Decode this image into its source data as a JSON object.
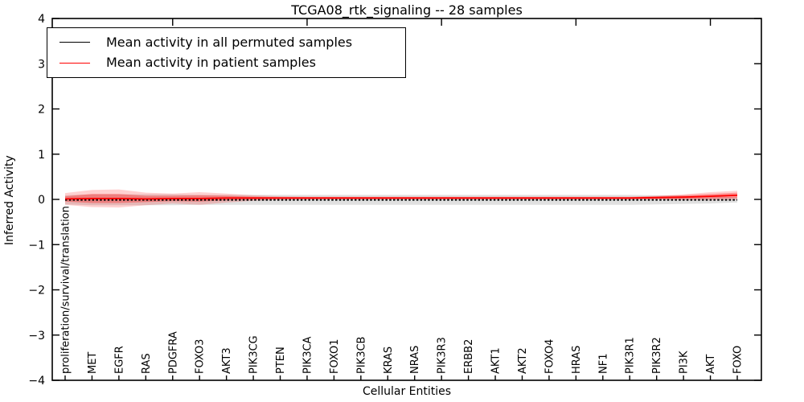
{
  "title": "TCGA08_rtk_signaling -- 28 samples",
  "legend": {
    "entries": [
      {
        "label": "Mean activity in all permuted samples",
        "color": "#000000"
      },
      {
        "label": "Mean activity in patient samples",
        "color": "#ff0000"
      }
    ]
  },
  "colors": {
    "axis": "#000000",
    "permuted_line": "#000000",
    "patient_line": "#ff0000",
    "permuted_band": "rgba(0,0,0,0.12)",
    "patient_band_outer": "rgba(255,0,0,0.18)",
    "patient_band_inner": "rgba(255,0,0,0.30)"
  },
  "chart_data": {
    "type": "line",
    "title": "TCGA08_rtk_signaling -- 28 samples",
    "xlabel": "Cellular Entities",
    "ylabel": "Inferred Activity",
    "ylim": [
      -4,
      4
    ],
    "yticks": [
      4,
      3,
      2,
      1,
      0,
      -1,
      -2,
      -3,
      -4
    ],
    "ytick_labels": [
      "4",
      "3",
      "2",
      "1",
      "0",
      "−1",
      "−2",
      "−3",
      "−4"
    ],
    "grid": false,
    "legend_position": "upper left",
    "top_major_tick_indices": [
      4,
      9,
      14,
      19,
      24
    ],
    "categories": [
      "proliferation/survival/translation",
      "MET",
      "EGFR",
      "RAS",
      "PDGFRA",
      "FOXO3",
      "AKT3",
      "PIK3CG",
      "PTEN",
      "PIK3CA",
      "FOXO1",
      "PIK3CB",
      "KRAS",
      "NRAS",
      "PIK3R3",
      "ERBB2",
      "AKT1",
      "AKT2",
      "FOXO4",
      "HRAS",
      "NF1",
      "PIK3R1",
      "PIK3R2",
      "PI3K",
      "AKT",
      "FOXO"
    ],
    "series": [
      {
        "name": "Mean activity in all permuted samples",
        "style": "dashed",
        "color": "#000000",
        "values": [
          -0.01,
          -0.01,
          -0.01,
          -0.01,
          -0.01,
          -0.01,
          -0.01,
          -0.01,
          -0.01,
          -0.01,
          -0.01,
          -0.01,
          -0.01,
          -0.01,
          -0.01,
          -0.01,
          -0.01,
          -0.01,
          -0.01,
          -0.01,
          -0.01,
          -0.01,
          -0.01,
          -0.01,
          -0.01,
          -0.01
        ]
      },
      {
        "name": "Mean activity in patient samples",
        "style": "solid",
        "color": "#ff0000",
        "values": [
          0.01,
          0.02,
          0.02,
          0.01,
          0.02,
          0.02,
          0.03,
          0.03,
          0.03,
          0.03,
          0.03,
          0.03,
          0.03,
          0.03,
          0.03,
          0.03,
          0.03,
          0.03,
          0.03,
          0.03,
          0.03,
          0.03,
          0.04,
          0.05,
          0.07,
          0.09
        ]
      }
    ],
    "bands": [
      {
        "name": "permuted-std-band",
        "center_series": 0,
        "color": "rgba(0,0,0,0.12)",
        "half_widths": [
          0.1,
          0.12,
          0.12,
          0.12,
          0.12,
          0.11,
          0.11,
          0.11,
          0.11,
          0.11,
          0.11,
          0.11,
          0.11,
          0.11,
          0.11,
          0.11,
          0.11,
          0.11,
          0.11,
          0.11,
          0.11,
          0.11,
          0.1,
          0.09,
          0.08,
          0.06
        ]
      },
      {
        "name": "patient-band-outer",
        "center_series": 1,
        "color": "rgba(255,0,0,0.18)",
        "half_widths": [
          0.13,
          0.19,
          0.2,
          0.14,
          0.11,
          0.14,
          0.1,
          0.06,
          0.04,
          0.03,
          0.03,
          0.03,
          0.03,
          0.03,
          0.03,
          0.03,
          0.03,
          0.03,
          0.03,
          0.03,
          0.03,
          0.03,
          0.04,
          0.06,
          0.09,
          0.1
        ]
      },
      {
        "name": "patient-band-inner",
        "center_series": 1,
        "color": "rgba(255,0,0,0.30)",
        "half_widths": [
          0.06,
          0.1,
          0.1,
          0.07,
          0.06,
          0.07,
          0.05,
          0.03,
          0.02,
          0.02,
          0.02,
          0.02,
          0.02,
          0.02,
          0.02,
          0.02,
          0.02,
          0.02,
          0.02,
          0.02,
          0.02,
          0.02,
          0.03,
          0.04,
          0.05,
          0.06
        ]
      }
    ]
  }
}
